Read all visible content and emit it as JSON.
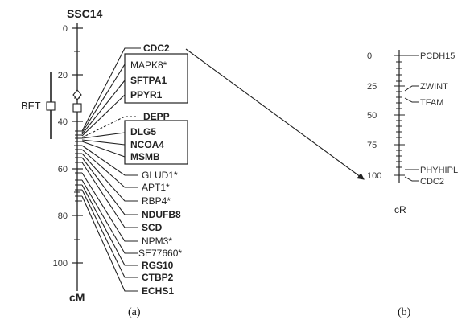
{
  "panel_a": {
    "title": "SSC14",
    "unit": "cM",
    "ticks": [
      "0",
      "20",
      "40",
      "60",
      "80",
      "100"
    ],
    "bft_label": "BFT",
    "genes": [
      {
        "label": "CDC2",
        "bold": true
      },
      {
        "label": "MAPK8*",
        "bold": false
      },
      {
        "label": "SFTPA1",
        "bold": true
      },
      {
        "label": "PPYR1",
        "bold": true
      },
      {
        "label": "DEPP",
        "bold": true
      },
      {
        "label": "DLG5",
        "bold": true
      },
      {
        "label": "NCOA4",
        "bold": true
      },
      {
        "label": "MSMB",
        "bold": true
      },
      {
        "label": "GLUD1*",
        "bold": false
      },
      {
        "label": "APT1*",
        "bold": false
      },
      {
        "label": "RBP4*",
        "bold": false
      },
      {
        "label": "NDUFB8",
        "bold": true
      },
      {
        "label": "SCD",
        "bold": true
      },
      {
        "label": "NPM3*",
        "bold": false
      },
      {
        "label": "SE77660*",
        "bold": false
      },
      {
        "label": "RGS10",
        "bold": true
      },
      {
        "label": "CTBP2",
        "bold": true
      },
      {
        "label": "ECHS1",
        "bold": true
      }
    ],
    "caption": "(a)"
  },
  "panel_b": {
    "ticks": [
      "0",
      "25",
      "50",
      "75",
      "100"
    ],
    "unit": "cR",
    "genes": [
      "PCDH15",
      "ZWINT",
      "TFAM",
      "PHYHIPL",
      "CDC2"
    ],
    "caption": "(b)"
  }
}
